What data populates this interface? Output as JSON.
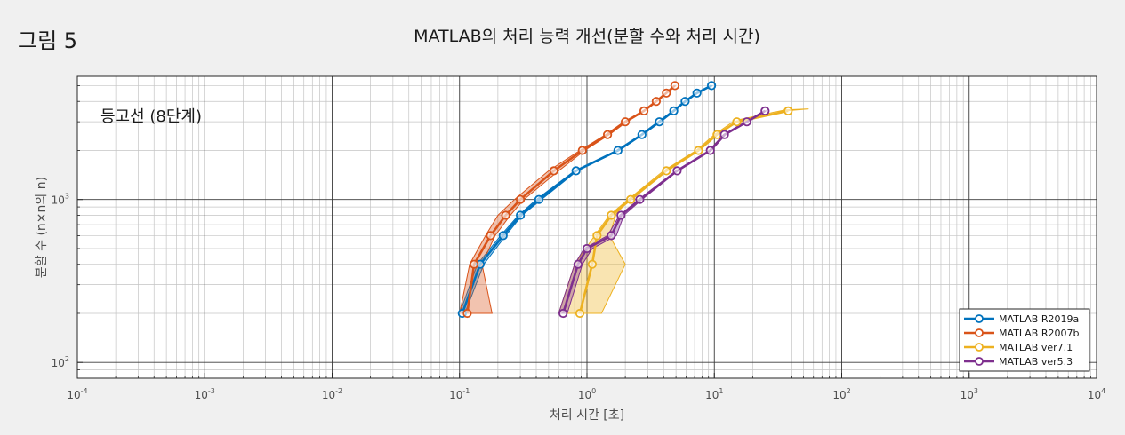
{
  "figure_label": "그림 5",
  "chart_data": {
    "type": "line",
    "title": "MATLAB의 처리 능력 개선(분할 수와 처리 시간)",
    "xlabel": "처리 시간 [초]",
    "ylabel": "분할 수 (n×n의 n)",
    "xscale": "log",
    "yscale": "log",
    "xlim": [
      0.0001,
      10000
    ],
    "ylim": [
      80,
      5700
    ],
    "grid": true,
    "annotation": "등고선 (8단계)",
    "legend_position": "bottom-right",
    "x_tick_labels": [
      {
        "base": "10",
        "exp": "-4"
      },
      {
        "base": "10",
        "exp": "-3"
      },
      {
        "base": "10",
        "exp": "-2"
      },
      {
        "base": "10",
        "exp": "-1"
      },
      {
        "base": "10",
        "exp": "0"
      },
      {
        "base": "10",
        "exp": "1"
      },
      {
        "base": "10",
        "exp": "2"
      },
      {
        "base": "10",
        "exp": "3"
      },
      {
        "base": "10",
        "exp": "4"
      }
    ],
    "y_tick_labels": [
      {
        "base": "10",
        "exp": "2"
      },
      {
        "base": "10",
        "exp": "3"
      }
    ],
    "series": [
      {
        "name": "MATLAB R2019a",
        "color": "#0072BD",
        "points": [
          [
            0.105,
            200
          ],
          [
            0.145,
            400
          ],
          [
            0.22,
            600
          ],
          [
            0.3,
            800
          ],
          [
            0.42,
            1000
          ],
          [
            0.82,
            1500
          ],
          [
            1.75,
            2000
          ],
          [
            2.7,
            2500
          ],
          [
            3.7,
            3000
          ],
          [
            4.8,
            3500
          ],
          [
            5.9,
            4000
          ],
          [
            7.3,
            4500
          ],
          [
            9.5,
            5000
          ]
        ],
        "band": [
          [
            0.1,
            200
          ],
          [
            0.138,
            400
          ],
          [
            0.21,
            600
          ],
          [
            0.29,
            800
          ],
          [
            0.4,
            1000
          ],
          [
            0.8,
            1500
          ],
          [
            1.7,
            2000
          ],
          [
            2.65,
            2500
          ],
          [
            3.6,
            3000
          ],
          [
            4.7,
            3500
          ],
          [
            5.8,
            4000
          ],
          [
            7.2,
            4500
          ],
          [
            9.3,
            5000
          ],
          [
            9.7,
            5000
          ],
          [
            7.4,
            4500
          ],
          [
            6.0,
            4000
          ],
          [
            4.9,
            3500
          ],
          [
            3.8,
            3000
          ],
          [
            2.75,
            2500
          ],
          [
            1.8,
            2000
          ],
          [
            0.84,
            1500
          ],
          [
            0.44,
            1000
          ],
          [
            0.31,
            800
          ],
          [
            0.23,
            600
          ],
          [
            0.155,
            400
          ],
          [
            0.11,
            200
          ]
        ]
      },
      {
        "name": "MATLAB R2007b",
        "color": "#D95319",
        "points": [
          [
            0.115,
            200
          ],
          [
            0.13,
            400
          ],
          [
            0.175,
            600
          ],
          [
            0.23,
            800
          ],
          [
            0.3,
            1000
          ],
          [
            0.55,
            1500
          ],
          [
            0.92,
            2000
          ],
          [
            1.45,
            2500
          ],
          [
            2.0,
            3000
          ],
          [
            2.8,
            3500
          ],
          [
            3.5,
            4000
          ],
          [
            4.2,
            4500
          ],
          [
            4.9,
            5000
          ]
        ],
        "band": [
          [
            0.1,
            200
          ],
          [
            0.12,
            400
          ],
          [
            0.16,
            600
          ],
          [
            0.2,
            800
          ],
          [
            0.27,
            1000
          ],
          [
            0.5,
            1500
          ],
          [
            0.88,
            2000
          ],
          [
            1.4,
            2500
          ],
          [
            1.95,
            3000
          ],
          [
            2.75,
            3500
          ],
          [
            3.45,
            4000
          ],
          [
            4.15,
            4500
          ],
          [
            4.85,
            5000
          ],
          [
            4.95,
            5000
          ],
          [
            4.25,
            4500
          ],
          [
            3.55,
            4000
          ],
          [
            2.85,
            3500
          ],
          [
            2.05,
            3000
          ],
          [
            1.5,
            2500
          ],
          [
            0.96,
            2000
          ],
          [
            0.6,
            1500
          ],
          [
            0.32,
            1000
          ],
          [
            0.25,
            800
          ],
          [
            0.19,
            600
          ],
          [
            0.15,
            400
          ],
          [
            0.18,
            200
          ]
        ]
      },
      {
        "name": "MATLAB ver7.1",
        "color": "#EDB120",
        "points": [
          [
            0.88,
            200
          ],
          [
            1.1,
            400
          ],
          [
            1.2,
            600
          ],
          [
            1.55,
            800
          ],
          [
            2.2,
            1000
          ],
          [
            4.2,
            1500
          ],
          [
            7.5,
            2000
          ],
          [
            10.5,
            2500
          ],
          [
            15,
            3000
          ],
          [
            38,
            3500
          ]
        ],
        "band": [
          [
            0.6,
            200
          ],
          [
            0.8,
            400
          ],
          [
            1.15,
            600
          ],
          [
            1.5,
            800
          ],
          [
            2.1,
            1000
          ],
          [
            4.0,
            1500
          ],
          [
            7.2,
            2000
          ],
          [
            10,
            2500
          ],
          [
            14,
            3000
          ],
          [
            30,
            3450
          ],
          [
            55,
            3600
          ],
          [
            36,
            3550
          ],
          [
            16,
            3100
          ],
          [
            11,
            2600
          ],
          [
            7.8,
            2050
          ],
          [
            4.4,
            1550
          ],
          [
            2.3,
            1050
          ],
          [
            1.7,
            820
          ],
          [
            1.5,
            600
          ],
          [
            2.0,
            400
          ],
          [
            1.3,
            200
          ]
        ]
      },
      {
        "name": "MATLAB ver5.3",
        "color": "#7E2F8E",
        "points": [
          [
            0.65,
            200
          ],
          [
            0.85,
            400
          ],
          [
            1.0,
            500
          ],
          [
            1.55,
            600
          ],
          [
            1.85,
            800
          ],
          [
            2.6,
            1000
          ],
          [
            5.1,
            1500
          ],
          [
            9.3,
            2000
          ],
          [
            12,
            2500
          ],
          [
            18,
            3000
          ],
          [
            25,
            3500
          ]
        ],
        "band": [
          [
            0.6,
            200
          ],
          [
            0.8,
            400
          ],
          [
            0.95,
            500
          ],
          [
            1.45,
            600
          ],
          [
            1.8,
            800
          ],
          [
            2.55,
            1000
          ],
          [
            5.0,
            1500
          ],
          [
            9.1,
            2000
          ],
          [
            11.8,
            2500
          ],
          [
            17.5,
            3000
          ],
          [
            24.5,
            3500
          ],
          [
            25.5,
            3500
          ],
          [
            18.5,
            3000
          ],
          [
            12.3,
            2500
          ],
          [
            9.5,
            2000
          ],
          [
            5.2,
            1500
          ],
          [
            2.7,
            1000
          ],
          [
            1.95,
            800
          ],
          [
            1.7,
            600
          ],
          [
            1.1,
            500
          ],
          [
            0.92,
            400
          ],
          [
            0.7,
            200
          ]
        ]
      }
    ]
  }
}
